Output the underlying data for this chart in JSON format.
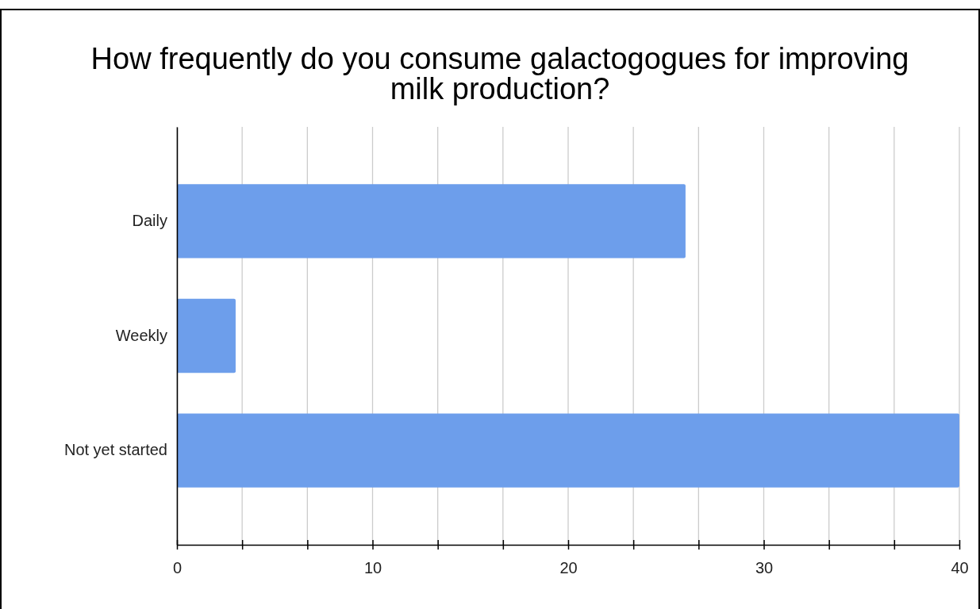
{
  "chart_data": {
    "type": "bar",
    "orientation": "horizontal",
    "title": "How frequently do you consume galactogogues for improving milk production?",
    "categories": [
      "Daily",
      "Weekly",
      "Not yet started"
    ],
    "values": [
      26,
      3,
      40
    ],
    "color": "#6d9eeb",
    "xlim": [
      0,
      40
    ],
    "xticks": [
      0,
      {
        "value": 3.333,
        "label": null
      },
      {
        "value": 6.667,
        "label": null
      },
      10,
      {
        "value": 13.333,
        "label": null
      },
      {
        "value": 16.667,
        "label": null
      },
      20,
      {
        "value": 23.333,
        "label": null
      },
      {
        "value": 26.667,
        "label": null
      },
      30,
      {
        "value": 33.333,
        "label": null
      },
      {
        "value": 36.667,
        "label": null
      },
      40
    ],
    "grid": "x"
  }
}
